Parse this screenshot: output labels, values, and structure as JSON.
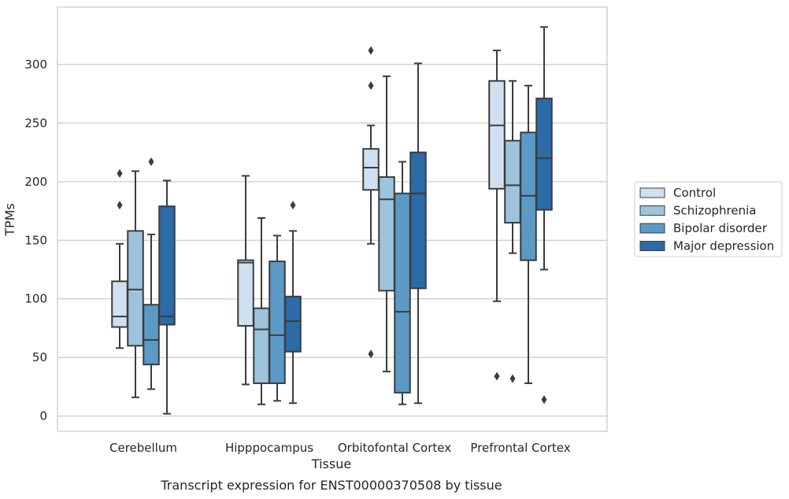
{
  "chart_data": {
    "type": "box",
    "caption": "Transcript expression for ENST00000370508 by tissue",
    "xlabel": "Tissue",
    "ylabel": "TPMs",
    "ylim": [
      -13,
      349
    ],
    "yticks": [
      0,
      50,
      100,
      150,
      200,
      250,
      300
    ],
    "grid": true,
    "legend_position": "right",
    "categories": [
      "Cerebellum",
      "Hipppocampus",
      "Orbitofontal Cortex",
      "Prefrontal Cortex"
    ],
    "series": [
      {
        "name": "Control",
        "color": "#cfe0f0",
        "boxes": [
          {
            "whisker_low": 58,
            "q1": 76,
            "median": 85,
            "q3": 115,
            "whisker_high": 147,
            "outliers": [
              180,
              207
            ]
          },
          {
            "whisker_low": 27,
            "q1": 77,
            "median": 131,
            "q3": 133,
            "whisker_high": 205,
            "outliers": []
          },
          {
            "whisker_low": 147,
            "q1": 193,
            "median": 212,
            "q3": 228,
            "whisker_high": 248,
            "outliers": [
              53,
              282,
              312
            ]
          },
          {
            "whisker_low": 98,
            "q1": 194,
            "median": 248,
            "q3": 286,
            "whisker_high": 312,
            "outliers": [
              34
            ]
          }
        ]
      },
      {
        "name": "Schizophrenia",
        "color": "#9dc3dd",
        "boxes": [
          {
            "whisker_low": 16,
            "q1": 60,
            "median": 108,
            "q3": 158,
            "whisker_high": 209,
            "outliers": []
          },
          {
            "whisker_low": 10,
            "q1": 28,
            "median": 74,
            "q3": 92,
            "whisker_high": 169,
            "outliers": []
          },
          {
            "whisker_low": 38,
            "q1": 107,
            "median": 185,
            "q3": 204,
            "whisker_high": 290,
            "outliers": []
          },
          {
            "whisker_low": 139,
            "q1": 165,
            "median": 197,
            "q3": 235,
            "whisker_high": 286,
            "outliers": [
              32
            ]
          }
        ]
      },
      {
        "name": "Bipolar disorder",
        "color": "#5b9ac6",
        "boxes": [
          {
            "whisker_low": 23,
            "q1": 44,
            "median": 65,
            "q3": 95,
            "whisker_high": 155,
            "outliers": [
              217
            ]
          },
          {
            "whisker_low": 13,
            "q1": 28,
            "median": 69,
            "q3": 132,
            "whisker_high": 154,
            "outliers": []
          },
          {
            "whisker_low": 10,
            "q1": 20,
            "median": 89,
            "q3": 190,
            "whisker_high": 217,
            "outliers": []
          },
          {
            "whisker_low": 28,
            "q1": 133,
            "median": 188,
            "q3": 242,
            "whisker_high": 282,
            "outliers": []
          }
        ]
      },
      {
        "name": "Major depression",
        "color": "#2b6ba8",
        "boxes": [
          {
            "whisker_low": 2,
            "q1": 78,
            "median": 85,
            "q3": 179,
            "whisker_high": 201,
            "outliers": []
          },
          {
            "whisker_low": 11,
            "q1": 55,
            "median": 81,
            "q3": 102,
            "whisker_high": 158,
            "outliers": [
              180
            ]
          },
          {
            "whisker_low": 11,
            "q1": 109,
            "median": 190,
            "q3": 225,
            "whisker_high": 301,
            "outliers": []
          },
          {
            "whisker_low": 125,
            "q1": 176,
            "median": 220,
            "q3": 271,
            "whisker_high": 332,
            "outliers": [
              14
            ]
          }
        ]
      }
    ]
  }
}
